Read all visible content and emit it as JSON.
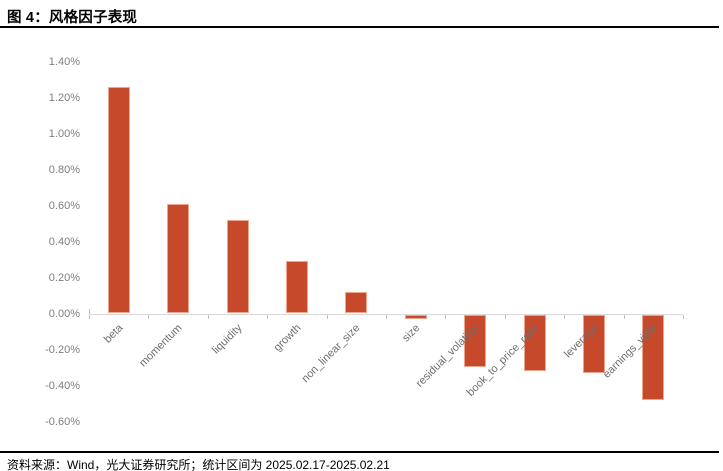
{
  "page": {
    "title": "图 4：风格因子表现",
    "footer": "资料来源：Wind，光大证券研究所；统计区间为 2025.02.17-2025.02.21"
  },
  "colors": {
    "bar_fill": "#c6492c",
    "bar_border": "#eda68e",
    "axis_line": "#d9d9d9",
    "tick": "#bfbfbf",
    "y_label": "#7f7f7f",
    "x_label": "#6e6e6e",
    "rule": "#000000"
  },
  "chart_data": {
    "type": "bar",
    "title": "风格因子表现",
    "categories": [
      "beta",
      "momentum",
      "liquidity",
      "growth",
      "non_linear_size",
      "size",
      "residual_volatility",
      "book_to_price_ratio",
      "leverage",
      "earnings_yield"
    ],
    "values": [
      1.26,
      0.61,
      0.52,
      0.29,
      0.12,
      -0.02,
      -0.29,
      -0.31,
      -0.32,
      -0.47
    ],
    "unit": "%",
    "xlabel": "",
    "ylabel": "",
    "ylim": [
      -0.6,
      1.4
    ],
    "y_tick_step": 0.2,
    "y_tick_labels": [
      "1.40%",
      "1.20%",
      "1.00%",
      "0.80%",
      "0.60%",
      "0.40%",
      "0.20%",
      "0.00%",
      "-0.20%",
      "-0.40%",
      "-0.60%"
    ],
    "grid": false,
    "legend": false,
    "bar_orientation": "vertical",
    "x_label_rotation_deg": -45
  }
}
